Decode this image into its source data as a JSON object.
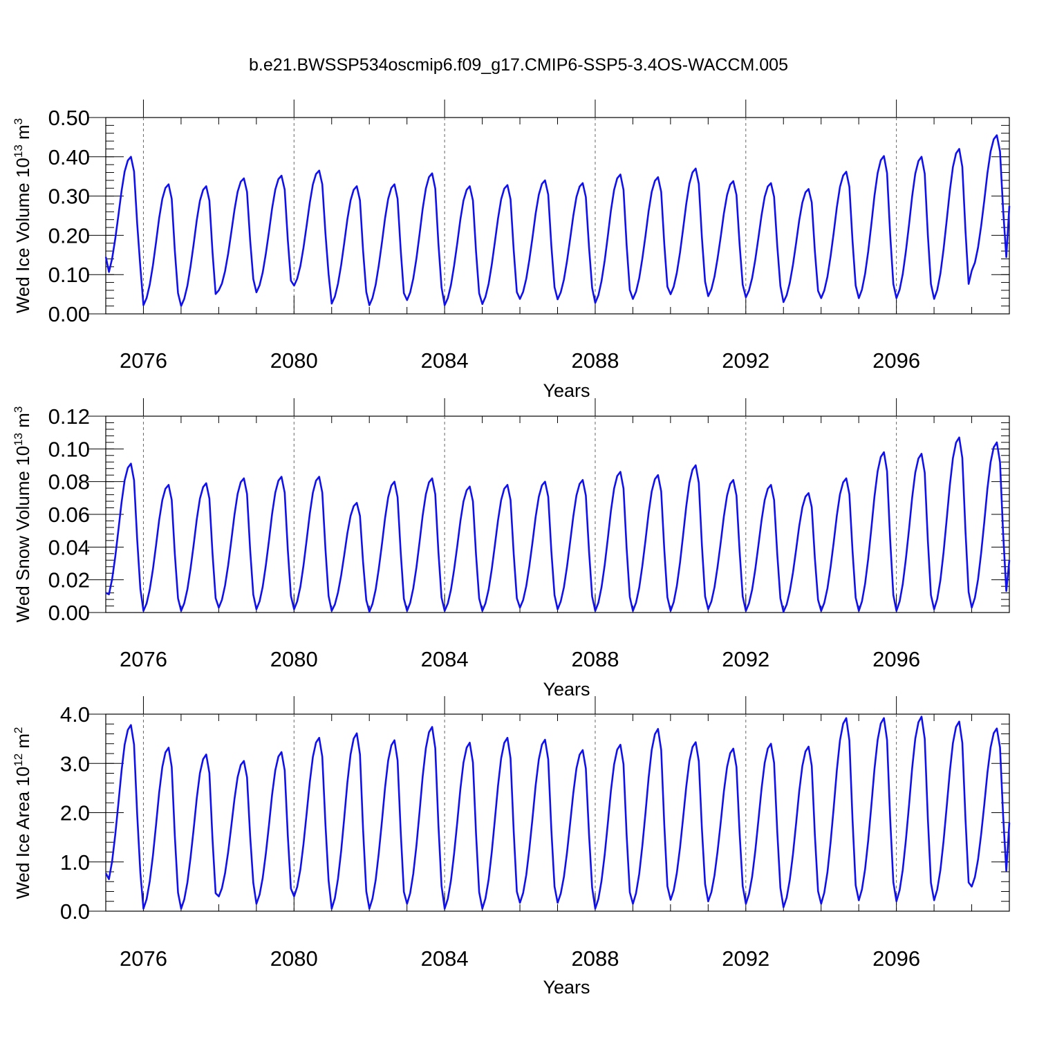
{
  "figure": {
    "title": "b.e21.BWSSP534oscmip6.f09_g17.CMIP6-SSP5-3.4OS-WACCM.005"
  },
  "chart_data": [
    {
      "type": "line",
      "ylabel": "Wed Ice Volume 10",
      "ylabel_sup": "13",
      "ylabel_unit": " m",
      "ylabel_unit_sup": "3",
      "xlabel": "Years",
      "xlim": [
        2075,
        2099
      ],
      "ylim": [
        0.0,
        0.5
      ],
      "ytick_values": [
        0.0,
        0.1,
        0.2,
        0.3,
        0.4,
        0.5
      ],
      "ytick_labels": [
        "0.00",
        "0.10",
        "0.20",
        "0.30",
        "0.40",
        "0.50"
      ],
      "ytick_minor_step": 0.02,
      "xtick_values": [
        2076,
        2080,
        2084,
        2088,
        2092,
        2096
      ],
      "xtick_labels": [
        "2076",
        "2080",
        "2084",
        "2088",
        "2092",
        "2096"
      ],
      "grid": "dashed vertical lines at labeled years",
      "line_color": "#1010ee",
      "peaks": [
        0.4,
        0.33,
        0.325,
        0.345,
        0.352,
        0.365,
        0.325,
        0.33,
        0.358,
        0.325,
        0.328,
        0.34,
        0.333,
        0.355,
        0.348,
        0.37,
        0.338,
        0.333,
        0.318,
        0.362,
        0.402,
        0.4,
        0.42,
        0.455
      ],
      "troughs": [
        0.088,
        0.022,
        0.02,
        0.06,
        0.055,
        0.072,
        0.026,
        0.022,
        0.035,
        0.022,
        0.025,
        0.038,
        0.037,
        0.028,
        0.038,
        0.05,
        0.045,
        0.042,
        0.03,
        0.04,
        0.04,
        0.04,
        0.038,
        0.11
      ],
      "y_start": 0.145,
      "y_end": 0.275
    },
    {
      "type": "line",
      "ylabel": "Wed Snow Volume 10",
      "ylabel_sup": "13",
      "ylabel_unit": " m",
      "ylabel_unit_sup": "3",
      "xlabel": "Years",
      "xlim": [
        2075,
        2099
      ],
      "ylim": [
        0.0,
        0.12
      ],
      "ytick_values": [
        0.0,
        0.02,
        0.04,
        0.06,
        0.08,
        0.1,
        0.12
      ],
      "ytick_labels": [
        "0.00",
        "0.02",
        "0.04",
        "0.06",
        "0.08",
        "0.10",
        "0.12"
      ],
      "ytick_minor_step": 0.004,
      "xtick_values": [
        2076,
        2080,
        2084,
        2088,
        2092,
        2096
      ],
      "xtick_labels": [
        "2076",
        "2080",
        "2084",
        "2088",
        "2092",
        "2096"
      ],
      "grid": "dashed vertical lines at labeled years",
      "line_color": "#1010ee",
      "peaks": [
        0.091,
        0.078,
        0.079,
        0.082,
        0.083,
        0.083,
        0.067,
        0.08,
        0.082,
        0.077,
        0.078,
        0.08,
        0.081,
        0.086,
        0.084,
        0.09,
        0.081,
        0.078,
        0.073,
        0.082,
        0.098,
        0.097,
        0.107,
        0.104
      ],
      "troughs": [
        0.006,
        0.001,
        0.001,
        0.003,
        0.002,
        0.002,
        0.001,
        0.0005,
        0.001,
        0.001,
        0.001,
        0.003,
        0.002,
        0.001,
        0.001,
        0.001,
        0.002,
        0.001,
        0.0005,
        0.001,
        0.001,
        0.001,
        0.002,
        0.003
      ],
      "y_start": 0.012,
      "y_end": 0.032
    },
    {
      "type": "line",
      "ylabel": "Wed Ice Area 10",
      "ylabel_sup": "12",
      "ylabel_unit": " m",
      "ylabel_unit_sup": "2",
      "xlabel": "Years",
      "xlim": [
        2075,
        2099
      ],
      "ylim": [
        0.0,
        4.0
      ],
      "ytick_values": [
        0.0,
        1.0,
        2.0,
        3.0,
        4.0
      ],
      "ytick_labels": [
        "0.0",
        "1.0",
        "2.0",
        "3.0",
        "4.0"
      ],
      "ytick_minor_step": 0.2,
      "xtick_values": [
        2076,
        2080,
        2084,
        2088,
        2092,
        2096
      ],
      "xtick_labels": [
        "2076",
        "2080",
        "2084",
        "2088",
        "2092",
        "2096"
      ],
      "grid": "dashed vertical lines at labeled years",
      "line_color": "#1010ee",
      "peaks": [
        3.78,
        3.32,
        3.18,
        3.05,
        3.23,
        3.52,
        3.61,
        3.47,
        3.74,
        3.42,
        3.52,
        3.48,
        3.27,
        3.38,
        3.7,
        3.43,
        3.3,
        3.4,
        3.34,
        3.92,
        3.92,
        3.95,
        3.85,
        3.71
      ],
      "troughs": [
        0.45,
        0.05,
        0.05,
        0.3,
        0.15,
        0.3,
        0.05,
        0.05,
        0.15,
        0.05,
        0.05,
        0.17,
        0.17,
        0.05,
        0.15,
        0.23,
        0.2,
        0.15,
        0.08,
        0.15,
        0.22,
        0.2,
        0.22,
        0.5
      ],
      "y_start": 0.77,
      "y_end": 1.8
    }
  ]
}
